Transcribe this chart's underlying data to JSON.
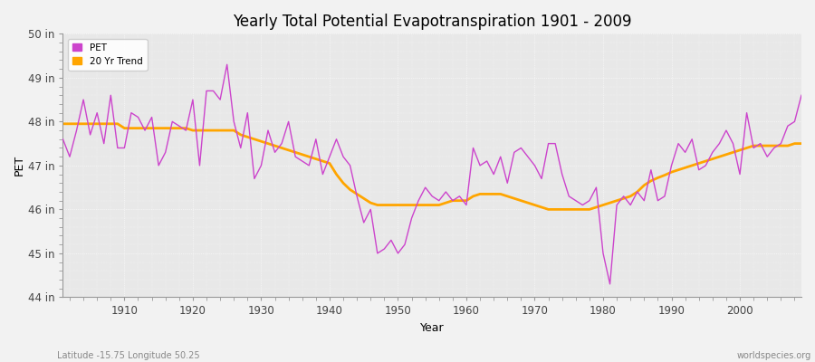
{
  "title": "Yearly Total Potential Evapotranspiration 1901 - 2009",
  "xlabel": "Year",
  "ylabel": "PET",
  "bottom_left": "Latitude -15.75 Longitude 50.25",
  "bottom_right": "worldspecies.org",
  "pet_color": "#CC44CC",
  "trend_color": "#FFA500",
  "bg_color": "#F0F0F0",
  "plot_bg_color": "#E0E0E0",
  "grid_color": "#FFFFFF",
  "ylim": [
    44,
    50
  ],
  "ytick_labels": [
    "44 in",
    "45 in",
    "46 in",
    "47 in",
    "48 in",
    "49 in",
    "50 in"
  ],
  "ytick_values": [
    44,
    45,
    46,
    47,
    48,
    49,
    50
  ],
  "years": [
    1901,
    1902,
    1903,
    1904,
    1905,
    1906,
    1907,
    1908,
    1909,
    1910,
    1911,
    1912,
    1913,
    1914,
    1915,
    1916,
    1917,
    1918,
    1919,
    1920,
    1921,
    1922,
    1923,
    1924,
    1925,
    1926,
    1927,
    1928,
    1929,
    1930,
    1931,
    1932,
    1933,
    1934,
    1935,
    1936,
    1937,
    1938,
    1939,
    1940,
    1941,
    1942,
    1943,
    1944,
    1945,
    1946,
    1947,
    1948,
    1949,
    1950,
    1951,
    1952,
    1953,
    1954,
    1955,
    1956,
    1957,
    1958,
    1959,
    1960,
    1961,
    1962,
    1963,
    1964,
    1965,
    1966,
    1967,
    1968,
    1969,
    1970,
    1971,
    1972,
    1973,
    1974,
    1975,
    1976,
    1977,
    1978,
    1979,
    1980,
    1981,
    1982,
    1983,
    1984,
    1985,
    1986,
    1987,
    1988,
    1989,
    1990,
    1991,
    1992,
    1993,
    1994,
    1995,
    1996,
    1997,
    1998,
    1999,
    2000,
    2001,
    2002,
    2003,
    2004,
    2005,
    2006,
    2007,
    2008,
    2009
  ],
  "pet_values": [
    47.6,
    47.2,
    47.8,
    48.5,
    47.7,
    48.2,
    47.5,
    48.6,
    47.4,
    47.4,
    48.2,
    48.1,
    47.8,
    48.1,
    47.0,
    47.3,
    48.0,
    47.9,
    47.8,
    48.5,
    47.0,
    48.7,
    48.7,
    48.5,
    49.3,
    48.0,
    47.4,
    48.2,
    46.7,
    47.0,
    47.8,
    47.3,
    47.5,
    48.0,
    47.2,
    47.1,
    47.0,
    47.6,
    46.8,
    47.2,
    47.6,
    47.2,
    47.0,
    46.3,
    45.7,
    46.0,
    45.0,
    45.1,
    45.3,
    45.0,
    45.2,
    45.8,
    46.2,
    46.5,
    46.3,
    46.2,
    46.4,
    46.2,
    46.3,
    46.1,
    47.4,
    47.0,
    47.1,
    46.8,
    47.2,
    46.6,
    47.3,
    47.4,
    47.2,
    47.0,
    46.7,
    47.5,
    47.5,
    46.8,
    46.3,
    46.2,
    46.1,
    46.2,
    46.5,
    45.0,
    44.3,
    46.1,
    46.3,
    46.1,
    46.4,
    46.2,
    46.9,
    46.2,
    46.3,
    47.0,
    47.5,
    47.3,
    47.6,
    46.9,
    47.0,
    47.3,
    47.5,
    47.8,
    47.5,
    46.8,
    48.2,
    47.4,
    47.5,
    47.2,
    47.4,
    47.5,
    47.9,
    48.0,
    48.6
  ],
  "trend_values": [
    47.95,
    47.95,
    47.95,
    47.95,
    47.95,
    47.95,
    47.95,
    47.95,
    47.95,
    47.85,
    47.85,
    47.85,
    47.85,
    47.85,
    47.85,
    47.85,
    47.85,
    47.85,
    47.85,
    47.8,
    47.8,
    47.8,
    47.8,
    47.8,
    47.8,
    47.8,
    47.7,
    47.65,
    47.6,
    47.55,
    47.5,
    47.45,
    47.4,
    47.35,
    47.3,
    47.25,
    47.2,
    47.15,
    47.1,
    47.05,
    46.8,
    46.6,
    46.45,
    46.35,
    46.25,
    46.15,
    46.1,
    46.1,
    46.1,
    46.1,
    46.1,
    46.1,
    46.1,
    46.1,
    46.1,
    46.1,
    46.15,
    46.2,
    46.2,
    46.2,
    46.3,
    46.35,
    46.35,
    46.35,
    46.35,
    46.3,
    46.25,
    46.2,
    46.15,
    46.1,
    46.05,
    46.0,
    46.0,
    46.0,
    46.0,
    46.0,
    46.0,
    46.0,
    46.05,
    46.1,
    46.15,
    46.2,
    46.25,
    46.3,
    46.4,
    46.55,
    46.65,
    46.72,
    46.78,
    46.85,
    46.9,
    46.95,
    47.0,
    47.05,
    47.1,
    47.15,
    47.2,
    47.25,
    47.3,
    47.35,
    47.4,
    47.45,
    47.45,
    47.45,
    47.45,
    47.45,
    47.45,
    47.5,
    47.5
  ]
}
